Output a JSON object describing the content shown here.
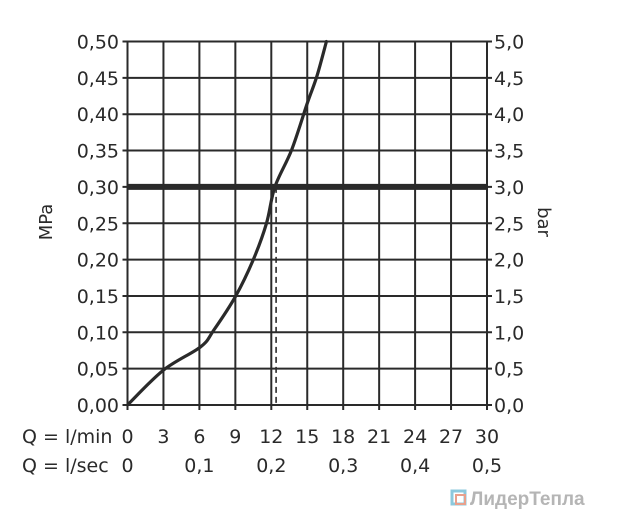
{
  "chart_data": {
    "type": "line",
    "title": "",
    "xlabel": "Q = l/min",
    "xlabel_secondary": "Q = l/sec",
    "ylabel": "MPa",
    "ylabel_right": "bar",
    "xlim": [
      0,
      30
    ],
    "ylim": [
      0,
      0.5
    ],
    "ylim_right": [
      0,
      5
    ],
    "grid": true,
    "x_ticks": [
      "0",
      "3",
      "6",
      "9",
      "12",
      "15",
      "18",
      "21",
      "24",
      "27",
      "30"
    ],
    "x_ticks_secondary": [
      {
        "at": 0,
        "label": "0"
      },
      {
        "at": 6,
        "label": "0,1"
      },
      {
        "at": 12,
        "label": "0,2"
      },
      {
        "at": 18,
        "label": "0,3"
      },
      {
        "at": 24,
        "label": "0,4"
      },
      {
        "at": 30,
        "label": "0,5"
      }
    ],
    "y_ticks": [
      "0,00",
      "0,05",
      "0,10",
      "0,15",
      "0,20",
      "0,25",
      "0,30",
      "0,35",
      "0,40",
      "0,45",
      "0,50"
    ],
    "y_ticks_right": [
      "0,0",
      "0,5",
      "1,0",
      "1,5",
      "2,0",
      "2,5",
      "3,0",
      "3,5",
      "4,0",
      "4,5",
      "5,0"
    ],
    "series": [
      {
        "x": [
          0,
          3.0,
          6.1,
          7.2,
          9.0,
          10.5,
          11.6,
          12.3,
          13.7,
          15.0,
          15.8,
          16.6
        ],
        "y": [
          0,
          0.048,
          0.08,
          0.103,
          0.149,
          0.2,
          0.25,
          0.3,
          0.351,
          0.415,
          0.452,
          0.5
        ]
      }
    ],
    "reference_line": {
      "y": 0.3
    },
    "marker_line": {
      "x": 12.4,
      "y": 0.3
    },
    "colors": {
      "line": "#2a2a2a",
      "grid": "#2a2a2a"
    }
  },
  "watermark": "ЛидерТепла"
}
